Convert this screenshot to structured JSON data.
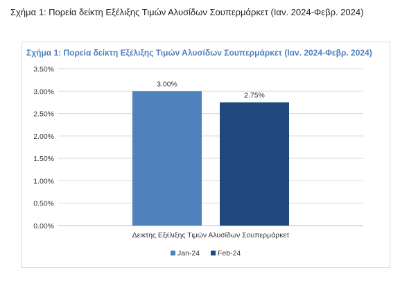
{
  "document": {
    "caption": "Σχήμα 1: Πορεία δείκτη Εξέλιξης Τιμών Αλυσίδων Σουπερμάρκετ (Ιαν. 2024-Φεβρ. 2024)"
  },
  "chart_data": {
    "type": "bar",
    "title": "Σχήμα 1: Πορεία δείκτη Εξέλιξης Τιμών Αλυσίδων Σουπερμάρκετ (Ιαν. 2024-Φεβρ. 2024)",
    "categories": [
      "Δεικτης Εξέλιξης Τιμών Αλυσίδων Σουπερμάρκετ"
    ],
    "series": [
      {
        "name": "Jan-24",
        "values": [
          3.0
        ],
        "label": "3.00%",
        "color": "#4f81bd"
      },
      {
        "name": "Feb-24",
        "values": [
          2.75
        ],
        "label": "2.75%",
        "color": "#1f497d"
      }
    ],
    "ylim": [
      0,
      3.5
    ],
    "yticks": [
      "0.00%",
      "0.50%",
      "1.00%",
      "1.50%",
      "2.00%",
      "2.50%",
      "3.00%",
      "3.50%"
    ],
    "grid": true,
    "legend_position": "bottom"
  }
}
